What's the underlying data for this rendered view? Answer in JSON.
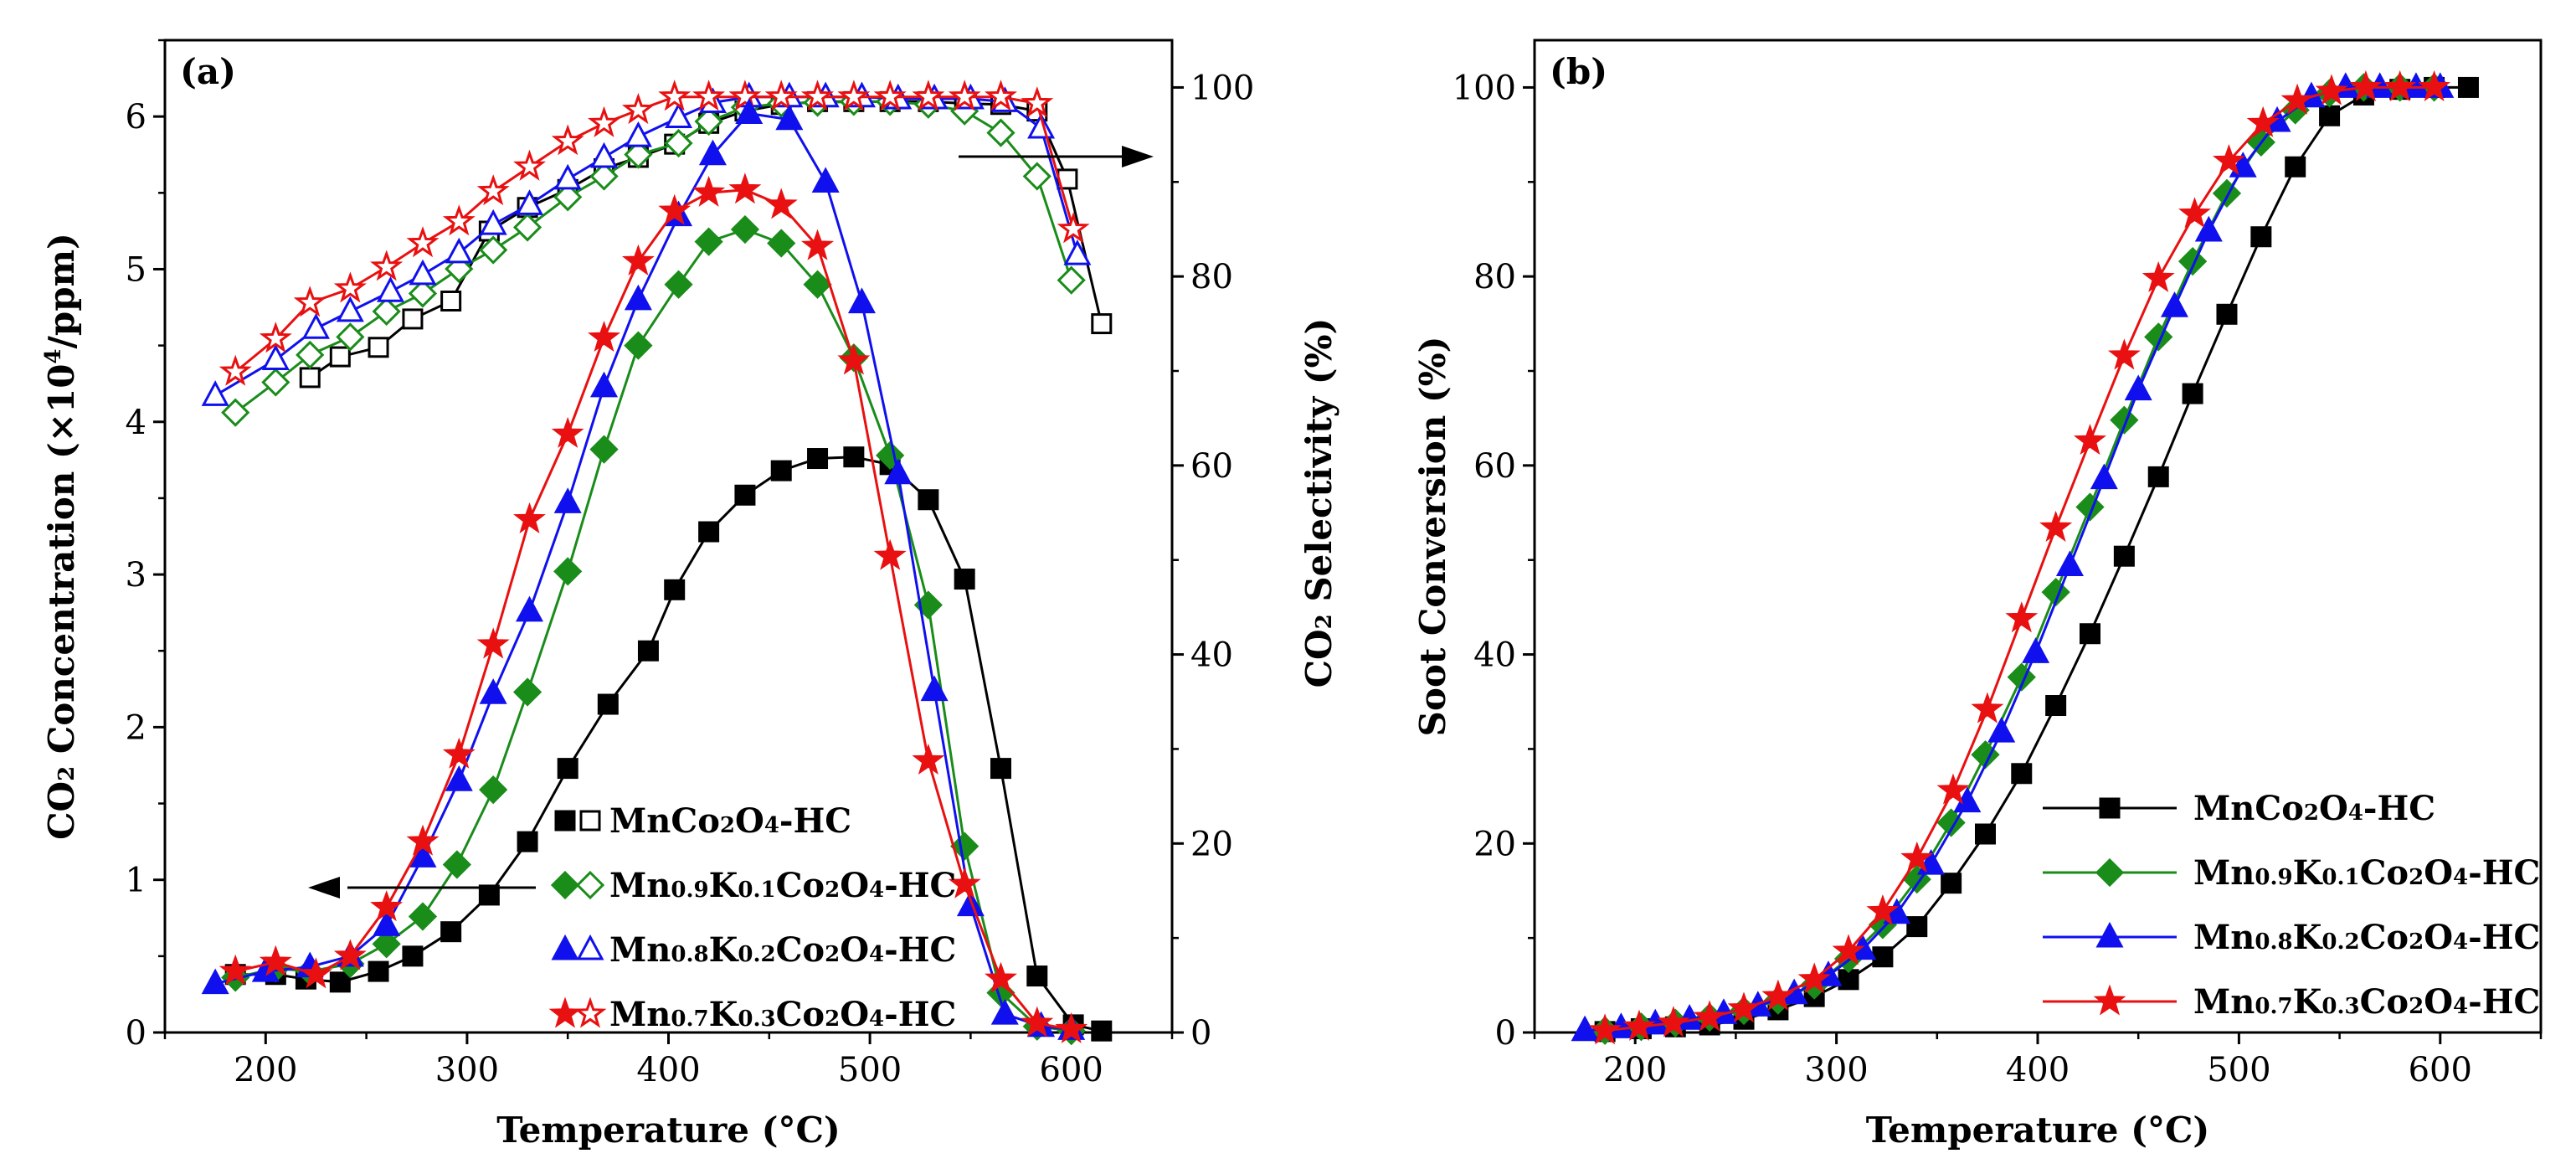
{
  "chart_data": [
    {
      "type": "line",
      "panel_label": "(a)",
      "xlabel": "Temperature (°C)",
      "ylabel_left": "CO2 Concentration (×10^4/ppm)",
      "ylabel_right": "CO2 Selectivity (%)",
      "xlim": [
        150,
        650
      ],
      "ylim_left": [
        0,
        6.5
      ],
      "ylim_right": [
        0,
        105
      ],
      "xticks": [
        200,
        300,
        400,
        500,
        600
      ],
      "yticks_left": [
        0,
        1,
        2,
        3,
        4,
        5,
        6
      ],
      "yticks_right": [
        0,
        20,
        40,
        60,
        80,
        100
      ],
      "annotations": [
        "arrow pointing left (concentration -> left axis)",
        "arrow pointing right (selectivity -> right axis)"
      ],
      "legend": [
        {
          "label": "MnCo2O4-HC",
          "color": "#000000",
          "marker": "square"
        },
        {
          "label": "Mn0.9K0.1Co2O4-HC",
          "color": "#1a8c1a",
          "marker": "diamond"
        },
        {
          "label": "Mn0.8K0.2Co2O4-HC",
          "color": "#1010ee",
          "marker": "triangle"
        },
        {
          "label": "Mn0.7K0.3Co2O4-HC",
          "color": "#e81010",
          "marker": "star"
        }
      ],
      "series_concentration": [
        {
          "name": "MnCo2O4-HC",
          "x": [
            185,
            205,
            220,
            237,
            256,
            273,
            292,
            311,
            330,
            350,
            370,
            390,
            403,
            420,
            438,
            456,
            474,
            492,
            510,
            529,
            547,
            565,
            583,
            601,
            615
          ],
          "y": [
            0.38,
            0.38,
            0.35,
            0.33,
            0.4,
            0.5,
            0.66,
            0.9,
            1.25,
            1.73,
            2.15,
            2.5,
            2.9,
            3.28,
            3.52,
            3.68,
            3.76,
            3.77,
            3.72,
            3.49,
            2.97,
            1.73,
            0.37,
            0.05,
            0.01
          ]
        },
        {
          "name": "Mn0.9K0.1Co2O4-HC",
          "x": [
            185,
            205,
            222,
            242,
            260,
            278,
            295,
            313,
            330,
            350,
            368,
            385,
            405,
            420,
            438,
            456,
            474,
            492,
            510,
            529,
            547,
            565,
            583,
            600
          ],
          "y": [
            0.36,
            0.42,
            0.4,
            0.45,
            0.58,
            0.76,
            1.1,
            1.59,
            2.23,
            3.02,
            3.82,
            4.5,
            4.9,
            5.18,
            5.26,
            5.17,
            4.9,
            4.42,
            3.78,
            2.8,
            1.22,
            0.26,
            0.04,
            0.01
          ]
        },
        {
          "name": "Mn0.8K0.2Co2O4-HC",
          "x": [
            175,
            200,
            222,
            242,
            260,
            278,
            296,
            313,
            331,
            350,
            368,
            385,
            405,
            422,
            440,
            460,
            478,
            496,
            514,
            532,
            550,
            567,
            585,
            600
          ],
          "y": [
            0.32,
            0.4,
            0.43,
            0.5,
            0.7,
            1.15,
            1.65,
            2.22,
            2.76,
            3.47,
            4.23,
            4.8,
            5.35,
            5.75,
            6.02,
            5.98,
            5.57,
            4.78,
            3.66,
            2.24,
            0.83,
            0.12,
            0.04,
            0.02
          ]
        },
        {
          "name": "Mn0.7K0.3Co2O4-HC",
          "x": [
            185,
            205,
            225,
            242,
            260,
            278,
            296,
            313,
            331,
            350,
            368,
            385,
            403,
            420,
            438,
            456,
            474,
            492,
            510,
            529,
            547,
            565,
            583,
            600
          ],
          "y": [
            0.4,
            0.46,
            0.38,
            0.5,
            0.82,
            1.25,
            1.82,
            2.54,
            3.36,
            3.92,
            4.55,
            5.05,
            5.38,
            5.5,
            5.52,
            5.42,
            5.15,
            4.4,
            3.12,
            1.78,
            0.97,
            0.35,
            0.06,
            0.02
          ]
        }
      ],
      "series_selectivity": [
        {
          "name": "MnCo2O4-HC",
          "x": [
            222,
            237,
            256,
            273,
            292,
            311,
            330,
            350,
            368,
            385,
            403,
            420,
            438,
            456,
            474,
            492,
            510,
            529,
            547,
            565,
            583,
            598,
            615
          ],
          "y": [
            69.3,
            71.5,
            72.5,
            75.5,
            77.4,
            84.8,
            87.3,
            89.2,
            91.4,
            92.6,
            94.0,
            96.2,
            97.5,
            98.2,
            98.5,
            98.5,
            98.5,
            98.5,
            98.3,
            98.2,
            97.5,
            90.3,
            75.0
          ]
        },
        {
          "name": "Mn0.9K0.1Co2O4-HC",
          "x": [
            185,
            205,
            222,
            242,
            260,
            278,
            296,
            313,
            330,
            350,
            368,
            385,
            405,
            420,
            438,
            456,
            474,
            492,
            510,
            529,
            547,
            565,
            583,
            600
          ],
          "y": [
            65.6,
            68.8,
            71.7,
            73.6,
            76.3,
            78.2,
            80.8,
            82.8,
            85.2,
            88.4,
            90.6,
            92.9,
            94.1,
            96.4,
            97.9,
            98.3,
            98.4,
            98.5,
            98.5,
            98.2,
            97.5,
            95.2,
            90.6,
            79.6
          ]
        },
        {
          "name": "Mn0.8K0.2Co2O4-HC",
          "x": [
            175,
            205,
            225,
            242,
            262,
            278,
            296,
            313,
            331,
            350,
            368,
            385,
            405,
            422,
            440,
            460,
            478,
            496,
            514,
            532,
            550,
            567,
            585,
            603
          ],
          "y": [
            67.4,
            71.2,
            74.5,
            76.3,
            78.4,
            80.2,
            82.5,
            85.5,
            87.6,
            90.3,
            92.6,
            94.8,
            96.8,
            98.4,
            99.0,
            99.0,
            99.0,
            99.0,
            98.8,
            98.8,
            98.8,
            98.5,
            95.7,
            82.3
          ]
        },
        {
          "name": "Mn0.7K0.3Co2O4-HC",
          "x": [
            185,
            205,
            222,
            242,
            260,
            278,
            296,
            313,
            331,
            350,
            368,
            385,
            403,
            420,
            438,
            456,
            474,
            492,
            510,
            529,
            547,
            565,
            583,
            601
          ],
          "y": [
            69.9,
            73.4,
            77.2,
            78.7,
            81.0,
            83.5,
            85.8,
            89.0,
            91.6,
            94.3,
            96.2,
            97.6,
            99.0,
            99.0,
            99.0,
            99.0,
            99.0,
            99.0,
            99.0,
            99.0,
            99.0,
            99.0,
            98.3,
            85.0
          ]
        }
      ]
    },
    {
      "type": "line",
      "panel_label": "(b)",
      "xlabel": "Temperature (°C)",
      "ylabel": "Soot Conversion (%)",
      "xlim": [
        150,
        650
      ],
      "ylim": [
        0,
        105
      ],
      "xticks": [
        200,
        300,
        400,
        500,
        600
      ],
      "yticks": [
        0,
        20,
        40,
        60,
        80,
        100
      ],
      "legend": [
        {
          "label": "MnCo2O4-HC",
          "color": "#000000",
          "marker": "square"
        },
        {
          "label": "Mn0.9K0.1Co2O4-HC",
          "color": "#1a8c1a",
          "marker": "diamond"
        },
        {
          "label": "Mn0.8K0.2Co2O4-HC",
          "color": "#1010ee",
          "marker": "triangle"
        },
        {
          "label": "Mn0.7K0.3Co2O4-HC",
          "color": "#e81010",
          "marker": "star"
        }
      ],
      "series": [
        {
          "name": "MnCo2O4-HC",
          "x": [
            185,
            203,
            220,
            237,
            254,
            271,
            289,
            306,
            323,
            340,
            357,
            374,
            392,
            409,
            426,
            443,
            460,
            477,
            494,
            511,
            528,
            545,
            562,
            580,
            597,
            614
          ],
          "y": [
            0.1,
            0.4,
            0.6,
            0.8,
            1.4,
            2.4,
            3.8,
            5.6,
            8.0,
            11.2,
            15.8,
            21.0,
            27.4,
            34.6,
            42.2,
            50.4,
            58.8,
            67.6,
            76.0,
            84.2,
            91.6,
            97.0,
            99.2,
            99.8,
            100,
            100
          ]
        },
        {
          "name": "Mn0.9K0.1Co2O4-HC",
          "x": [
            185,
            203,
            220,
            237,
            254,
            271,
            289,
            306,
            323,
            340,
            357,
            374,
            392,
            409,
            426,
            443,
            460,
            477,
            494,
            511,
            528,
            545,
            562,
            580,
            597
          ],
          "y": [
            0.2,
            0.6,
            1.0,
            1.6,
            2.3,
            3.4,
            5.0,
            7.8,
            11.4,
            16.2,
            22.2,
            29.4,
            37.6,
            46.6,
            55.6,
            64.8,
            73.6,
            81.6,
            88.8,
            94.2,
            97.6,
            99.4,
            100,
            100,
            100
          ]
        },
        {
          "name": "Mn0.8K0.2Co2O4-HC",
          "x": [
            175,
            193,
            210,
            227,
            244,
            261,
            279,
            296,
            313,
            330,
            347,
            365,
            382,
            399,
            416,
            433,
            450,
            468,
            485,
            502,
            519,
            536,
            553,
            570,
            588,
            600
          ],
          "y": [
            0.2,
            0.5,
            0.9,
            1.4,
            2.0,
            2.8,
            4.1,
            6.0,
            8.8,
            12.6,
            17.8,
            24.4,
            31.8,
            40.2,
            49.4,
            58.6,
            68.0,
            76.8,
            84.8,
            91.6,
            96.4,
            99.0,
            100,
            100,
            100,
            100
          ]
        },
        {
          "name": "Mn0.7K0.3Co2O4-HC",
          "x": [
            185,
            202,
            219,
            237,
            254,
            271,
            289,
            306,
            323,
            340,
            358,
            375,
            392,
            409,
            426,
            443,
            460,
            478,
            495,
            512,
            529,
            546,
            563,
            580,
            597
          ],
          "y": [
            0.2,
            0.6,
            1.0,
            1.6,
            2.5,
            3.8,
            5.6,
            8.6,
            12.8,
            18.4,
            25.6,
            34.2,
            43.8,
            53.4,
            62.6,
            71.6,
            79.8,
            86.6,
            92.2,
            96.2,
            98.6,
            99.6,
            100,
            100,
            100
          ]
        }
      ]
    }
  ]
}
